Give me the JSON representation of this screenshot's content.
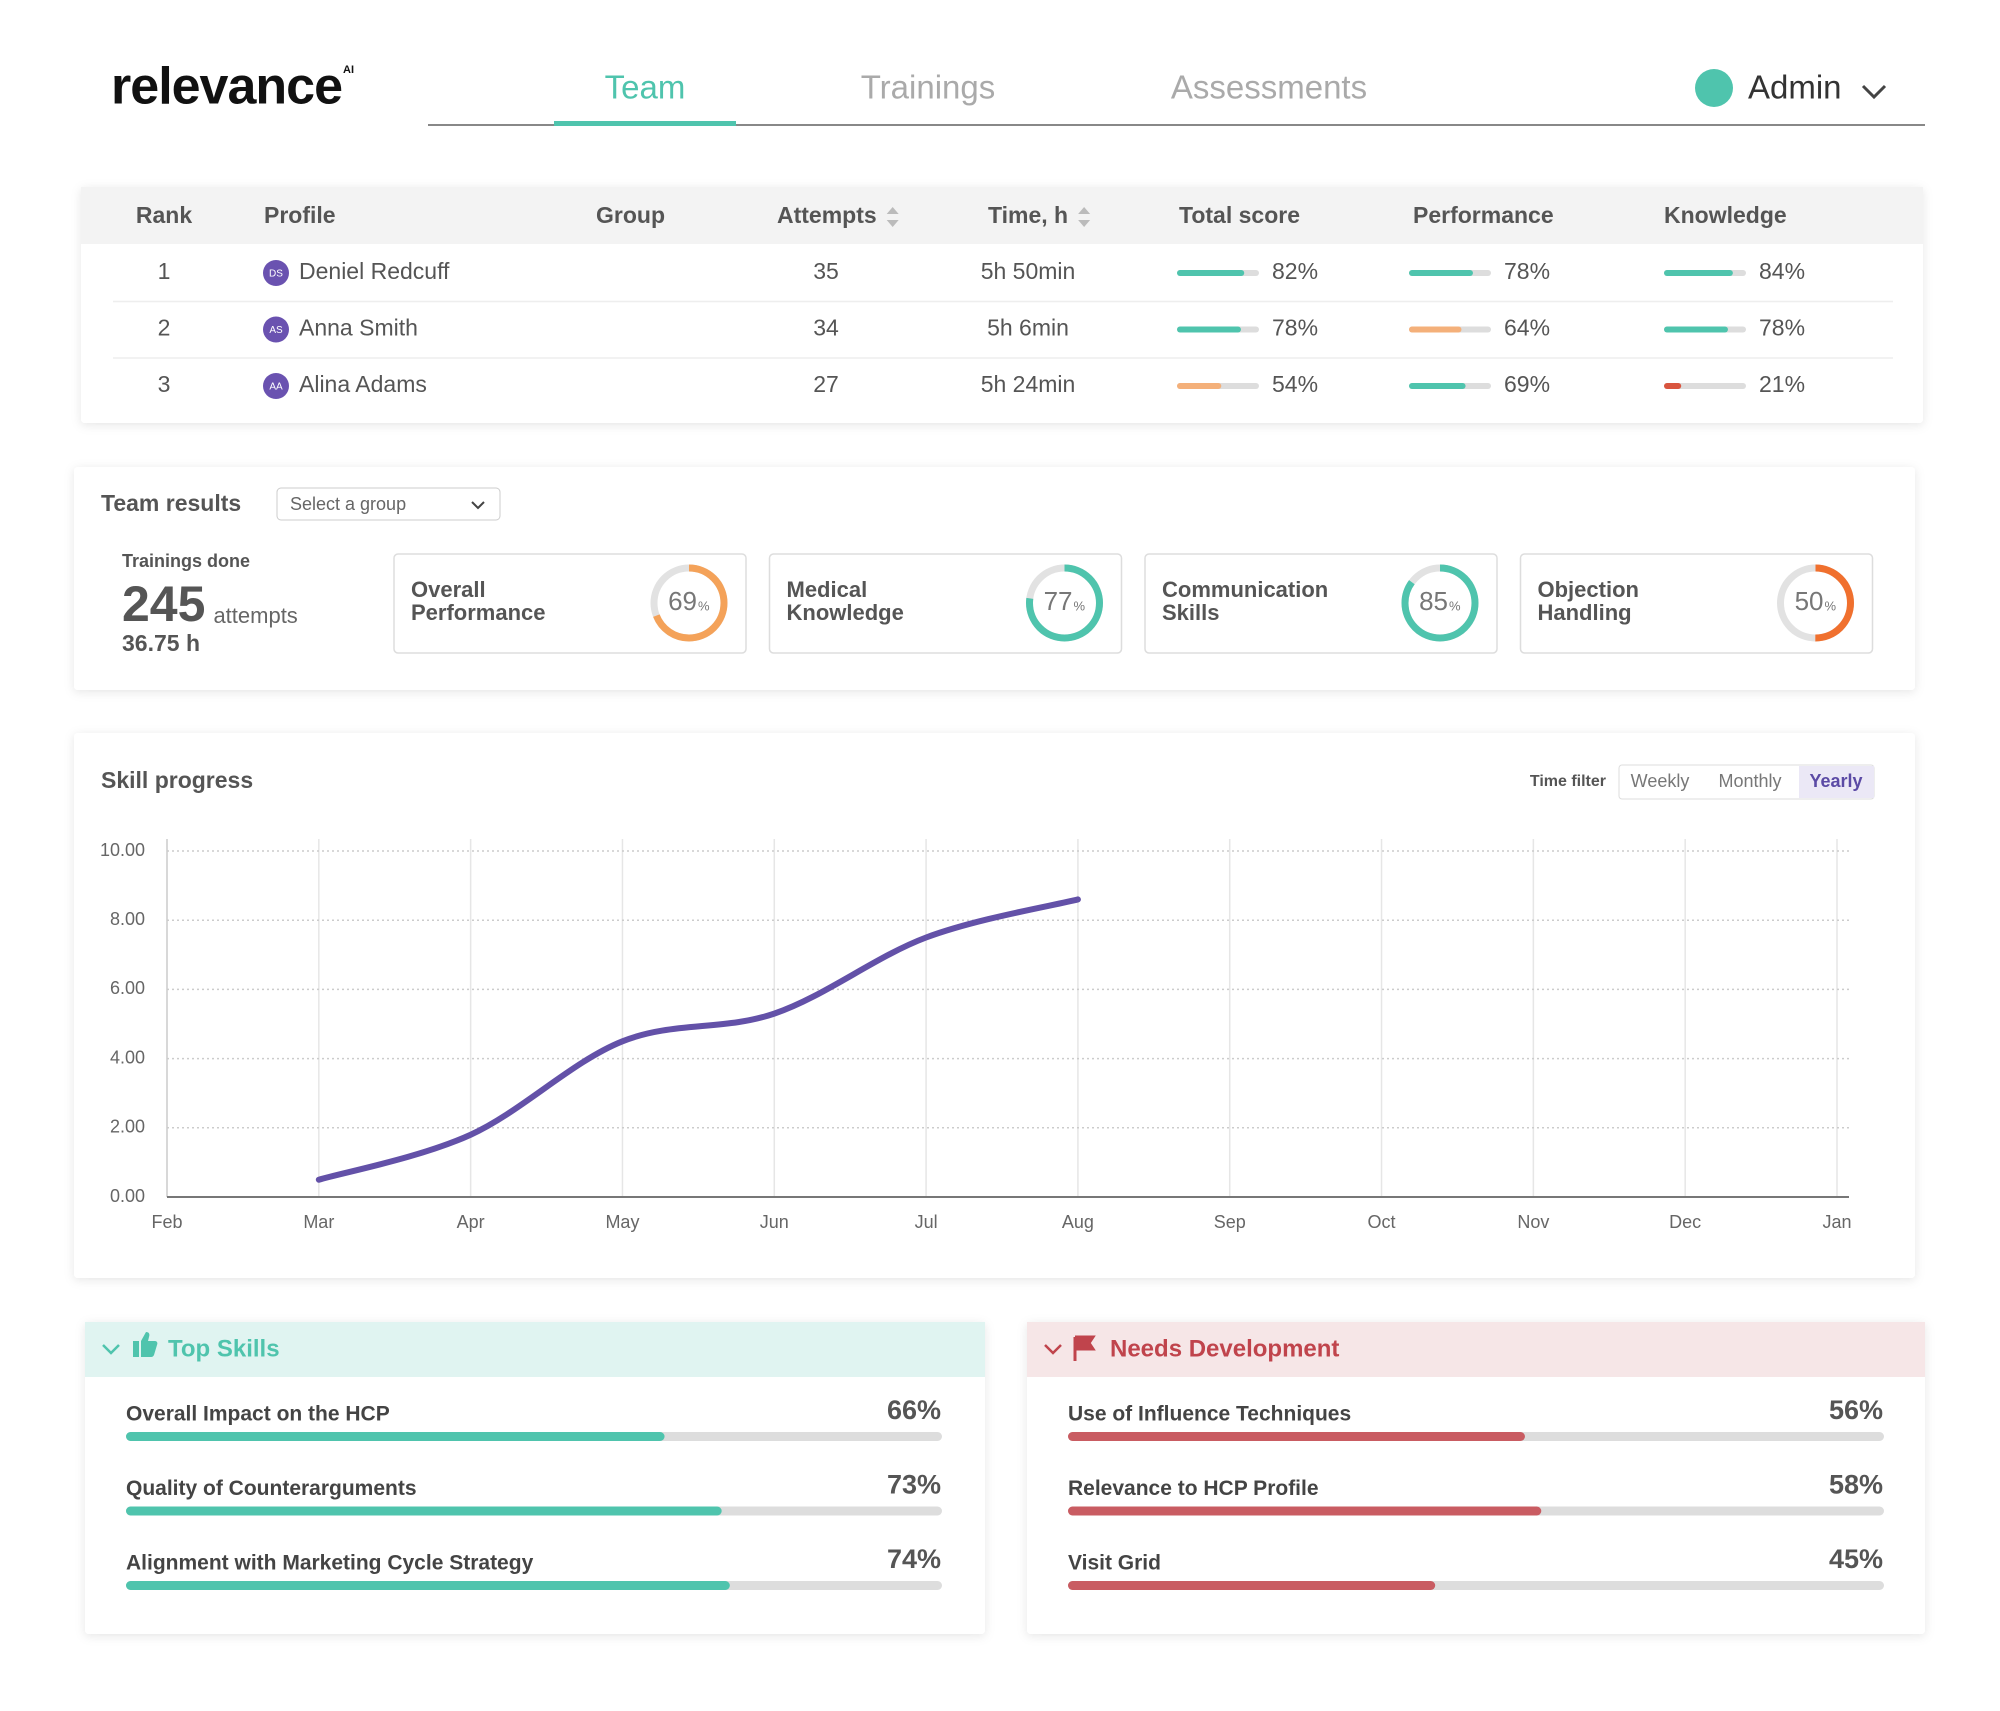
{
  "header": {
    "logo": "relevance",
    "logo_sup": "AI",
    "tabs": [
      "Team",
      "Trainings",
      "Assessments"
    ],
    "active_tab": 0,
    "user": "Admin"
  },
  "table": {
    "columns": [
      "Rank",
      "Profile",
      "Group",
      "Attempts",
      "Time, h",
      "Total score",
      "Performance",
      "Knowledge"
    ],
    "sortable_columns": [
      3,
      4
    ],
    "scale": [
      0,
      100
    ],
    "rows": [
      {
        "rank": 1,
        "initials": "DS",
        "name": "Deniel Redcuff",
        "attempts": 35,
        "time": "5h 50min",
        "scores": [
          {
            "value": 82,
            "label": "82%",
            "color": "#4fc4ad"
          },
          {
            "value": 78,
            "label": "78%",
            "color": "#4fc4ad"
          },
          {
            "value": 84,
            "label": "84%",
            "color": "#4fc4ad"
          }
        ]
      },
      {
        "rank": 2,
        "initials": "AS",
        "name": "Anna Smith",
        "attempts": 34,
        "time": "5h 6min",
        "scores": [
          {
            "value": 78,
            "label": "78%",
            "color": "#4fc4ad"
          },
          {
            "value": 64,
            "label": "64%",
            "color": "#f4b07a"
          },
          {
            "value": 78,
            "label": "78%",
            "color": "#4fc4ad"
          }
        ]
      },
      {
        "rank": 3,
        "initials": "AA",
        "name": "Alina Adams",
        "attempts": 27,
        "time": "5h 24min",
        "scores": [
          {
            "value": 54,
            "label": "54%",
            "color": "#f4b07a"
          },
          {
            "value": 69,
            "label": "69%",
            "color": "#4fc4ad"
          },
          {
            "value": 21,
            "label": "21%",
            "color": "#d9553f"
          }
        ]
      }
    ]
  },
  "team_results": {
    "title": "Team results",
    "select": "Select a group",
    "trainings_label": "Trainings done",
    "attempts": 245,
    "attempts_unit": "attempts",
    "hours": "36.75 h",
    "scale": [
      0,
      100
    ],
    "gauges": [
      {
        "label_lines": [
          "Overall",
          "Performance"
        ],
        "value": 69,
        "unit": "%",
        "color": "#f4a259"
      },
      {
        "label_lines": [
          "Medical",
          "Knowledge"
        ],
        "value": 77,
        "unit": "%",
        "color": "#4fc4ad"
      },
      {
        "label_lines": [
          "Communication",
          "Skills"
        ],
        "value": 85,
        "unit": "%",
        "color": "#4fc4ad"
      },
      {
        "label_lines": [
          "Objection",
          "Handling"
        ],
        "value": 50,
        "unit": "%",
        "color": "#f0702e"
      }
    ]
  },
  "time_filter": {
    "label": "Time filter",
    "options": [
      "Weekly",
      "Monthly",
      "Yearly"
    ],
    "active": 2
  },
  "chart_data": {
    "type": "line",
    "title": "Skill progress",
    "categories": [
      "Feb",
      "Mar",
      "Apr",
      "May",
      "Jun",
      "Jul",
      "Aug",
      "Sep",
      "Oct",
      "Nov",
      "Dec",
      "Jan"
    ],
    "values": [
      null,
      0.5,
      1.8,
      4.5,
      5.3,
      7.5,
      8.6,
      null,
      null,
      null,
      null,
      null
    ],
    "color": "#6351a8",
    "ylim": [
      0,
      10
    ],
    "yticks": [
      {
        "value": 0,
        "label": "0.00"
      },
      {
        "value": 2,
        "label": "2.00"
      },
      {
        "value": 4,
        "label": "4.00"
      },
      {
        "value": 6,
        "label": "6.00"
      },
      {
        "value": 8,
        "label": "8.00"
      },
      {
        "value": 10,
        "label": "10.00"
      }
    ],
    "grid": true
  },
  "top_skills": {
    "title": "Top Skills",
    "color": "#4fc4ad",
    "header_color": "#4fc4ad",
    "scale": [
      0,
      100
    ],
    "items": [
      {
        "label": "Overall Impact on the HCP",
        "value": 66,
        "value_label": "66%"
      },
      {
        "label": "Quality of Counterarguments",
        "value": 73,
        "value_label": "73%"
      },
      {
        "label": "Alignment with Marketing Cycle Strategy",
        "value": 74,
        "value_label": "74%"
      }
    ]
  },
  "needs_development": {
    "title": "Needs Development",
    "color": "#c95c62",
    "header_color": "#c0444c",
    "scale": [
      0,
      100
    ],
    "items": [
      {
        "label": "Use of Influence Techniques",
        "value": 56,
        "value_label": "56%"
      },
      {
        "label": "Relevance to HCP Profile",
        "value": 58,
        "value_label": "58%"
      },
      {
        "label": "Visit Grid",
        "value": 45,
        "value_label": "45%"
      }
    ]
  }
}
